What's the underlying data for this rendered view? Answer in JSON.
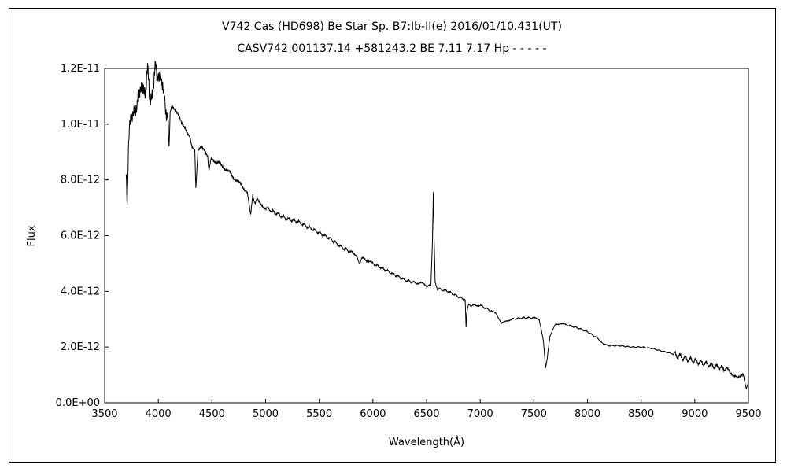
{
  "chart_data": {
    "type": "line",
    "title": "V742 Cas (HD698)    Be Star    Sp. B7:Ib-II(e)    2016/01/10.431(UT)",
    "subtitle": "CASV742 001137.14 +581243.2 BE 7.11 7.17 Hp - - - - -",
    "xlabel": "Wavelength(Å)",
    "ylabel": "Flux",
    "xlim": [
      3500,
      9500
    ],
    "ylim": [
      0,
      1.2e-11
    ],
    "grid": false,
    "x_ticks": [
      "3500",
      "4000",
      "4500",
      "5000",
      "5500",
      "6000",
      "6500",
      "7000",
      "7500",
      "8000",
      "8500",
      "9000",
      "9500"
    ],
    "y_ticks": [
      "0.0E+00",
      "2.0E-12",
      "4.0E-12",
      "6.0E-12",
      "8.0E-12",
      "1.0E-11",
      "1.2E-11"
    ],
    "series": [
      {
        "x": [
          3700,
          3710,
          3720,
          3730,
          3750,
          3780,
          3800,
          3820,
          3850,
          3880,
          3900,
          3920,
          3950,
          3970,
          3990,
          4000,
          4030,
          4060,
          4080,
          4101,
          4110,
          4130,
          4160,
          4190,
          4220,
          4250,
          4280,
          4300,
          4320,
          4340,
          4350,
          4370,
          4400,
          4430,
          4460,
          4471,
          4500,
          4550,
          4600,
          4650,
          4700,
          4750,
          4800,
          4830,
          4861,
          4880,
          4900,
          4920,
          4950,
          5000,
          5100,
          5200,
          5300,
          5400,
          5500,
          5600,
          5700,
          5800,
          5850,
          5876,
          5895,
          5950,
          6000,
          6100,
          6200,
          6300,
          6400,
          6450,
          6500,
          6540,
          6555,
          6563,
          6570,
          6580,
          6600,
          6700,
          6800,
          6860,
          6868,
          6875,
          6890,
          6950,
          7000,
          7100,
          7150,
          7200,
          7250,
          7300,
          7400,
          7500,
          7550,
          7590,
          7610,
          7625,
          7650,
          7700,
          7750,
          7800,
          7900,
          8000,
          8100,
          8150,
          8200,
          8300,
          8400,
          8500,
          8600,
          8700,
          8800,
          8900,
          9000,
          9100,
          9200,
          9300,
          9350,
          9400,
          9450,
          9480,
          9500
        ],
        "values": [
          8.2e-12,
          7.3e-12,
          8.8e-12,
          9.6e-12,
          1.04e-11,
          1.09e-11,
          1.03e-11,
          1.12e-11,
          1.17e-11,
          1.14e-11,
          1.18e-11,
          1.1e-11,
          1.15e-11,
          1.19e-11,
          1.16e-11,
          1.14e-11,
          1.13e-11,
          1.09e-11,
          1.05e-11,
          9.2e-12,
          1.04e-11,
          1.06e-11,
          1.05e-11,
          1.04e-11,
          1.01e-11,
          9.9e-12,
          9.6e-12,
          9.4e-12,
          9.2e-12,
          9e-12,
          7.7e-12,
          9e-12,
          9.2e-12,
          9.1e-12,
          8.9e-12,
          8.4e-12,
          8.8e-12,
          8.6e-12,
          8.5e-12,
          8.3e-12,
          8.1e-12,
          7.9e-12,
          7.7e-12,
          7.6e-12,
          6.7e-12,
          7.4e-12,
          7.2e-12,
          7.3e-12,
          7.1e-12,
          7e-12,
          6.8e-12,
          6.6e-12,
          6.5e-12,
          6.3e-12,
          6.1e-12,
          5.9e-12,
          5.6e-12,
          5.4e-12,
          5.3e-12,
          5e-12,
          5.2e-12,
          5.1e-12,
          5e-12,
          4.8e-12,
          4.6e-12,
          4.4e-12,
          4.3e-12,
          4.3e-12,
          4.2e-12,
          4.2e-12,
          5.8e-12,
          7.6e-12,
          6e-12,
          4.3e-12,
          4.1e-12,
          4e-12,
          3.8e-12,
          3.7e-12,
          2.7e-12,
          3.2e-12,
          3.5e-12,
          3.5e-12,
          3.5e-12,
          3.3e-12,
          3.2e-12,
          2.85e-12,
          2.95e-12,
          3e-12,
          3.05e-12,
          3.05e-12,
          3e-12,
          2.2e-12,
          1.25e-12,
          1.6e-12,
          2.4e-12,
          2.8e-12,
          2.85e-12,
          2.8e-12,
          2.7e-12,
          2.55e-12,
          2.3e-12,
          2.1e-12,
          2.05e-12,
          2.05e-12,
          2e-12,
          2e-12,
          1.95e-12,
          1.85e-12,
          1.75e-12,
          1.6e-12,
          1.5e-12,
          1.4e-12,
          1.3e-12,
          1.2e-12,
          1.05e-12,
          8.5e-13,
          1.1e-12,
          5e-13,
          7e-13
        ]
      }
    ]
  }
}
